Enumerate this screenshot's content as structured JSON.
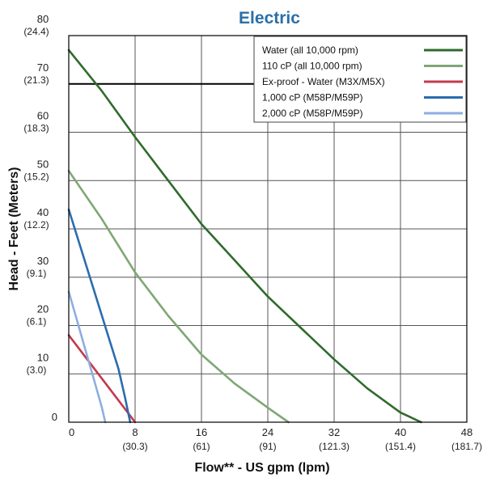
{
  "chart_data": {
    "type": "line",
    "title": "Electric",
    "xlabel": "Flow** - US gpm (lpm)",
    "ylabel": "Head - Feet (Meters)",
    "xlim": [
      0,
      48
    ],
    "ylim": [
      0,
      80
    ],
    "grid": true,
    "legend_position": "top-right",
    "x_ticks": [
      {
        "value": 0,
        "label": "0",
        "sub": ""
      },
      {
        "value": 8,
        "label": "8",
        "sub": "(30.3)"
      },
      {
        "value": 16,
        "label": "16",
        "sub": "(61)"
      },
      {
        "value": 24,
        "label": "24",
        "sub": "(91)"
      },
      {
        "value": 32,
        "label": "32",
        "sub": "(121.3)"
      },
      {
        "value": 40,
        "label": "40",
        "sub": "(151.4)"
      },
      {
        "value": 48,
        "label": "48",
        "sub": "(181.7)"
      }
    ],
    "y_ticks": [
      {
        "value": 0,
        "label": "0",
        "sub": ""
      },
      {
        "value": 10,
        "label": "10",
        "sub": "(3.0)"
      },
      {
        "value": 20,
        "label": "20",
        "sub": "(6.1)"
      },
      {
        "value": 30,
        "label": "30",
        "sub": "(9.1)"
      },
      {
        "value": 40,
        "label": "40",
        "sub": "(12.2)"
      },
      {
        "value": 50,
        "label": "50",
        "sub": "(15.2)"
      },
      {
        "value": 60,
        "label": "60",
        "sub": "(18.3)"
      },
      {
        "value": 70,
        "label": "70",
        "sub": "(21.3)"
      },
      {
        "value": 80,
        "label": "80",
        "sub": "(24.4)"
      }
    ],
    "reference_line": {
      "y": 70,
      "x_end": 36
    },
    "series": [
      {
        "name": "Water (all 10,000 rpm)",
        "color": "#2f6b2c",
        "points": [
          [
            0,
            77
          ],
          [
            4,
            68.5
          ],
          [
            8,
            59
          ],
          [
            12,
            50
          ],
          [
            16,
            41
          ],
          [
            20,
            33.5
          ],
          [
            24,
            26
          ],
          [
            28,
            19.5
          ],
          [
            32,
            13
          ],
          [
            36,
            7
          ],
          [
            40,
            2
          ],
          [
            42.5,
            0
          ]
        ]
      },
      {
        "name": "110 cP (all 10,000 rpm)",
        "color": "#7fa774",
        "points": [
          [
            0,
            52
          ],
          [
            4,
            42
          ],
          [
            8,
            31
          ],
          [
            12,
            22
          ],
          [
            16,
            14
          ],
          [
            20,
            8
          ],
          [
            24,
            3
          ],
          [
            26.5,
            0
          ]
        ]
      },
      {
        "name": "Ex-proof - Water (M3X/M5X)",
        "color": "#c33a4d",
        "points": [
          [
            0,
            18
          ],
          [
            2,
            13.5
          ],
          [
            4,
            9
          ],
          [
            6,
            4.5
          ],
          [
            8,
            0
          ]
        ]
      },
      {
        "name": "1,000 cP (M58P/M59P)",
        "color": "#2b6cb0",
        "points": [
          [
            0,
            44
          ],
          [
            2,
            33
          ],
          [
            4,
            22
          ],
          [
            6,
            11
          ],
          [
            6.8,
            5
          ],
          [
            7.4,
            0
          ]
        ]
      },
      {
        "name": "2,000 cP (M58P/M59P)",
        "color": "#8eaee0",
        "points": [
          [
            0,
            27
          ],
          [
            1,
            21
          ],
          [
            2,
            15
          ],
          [
            3,
            9
          ],
          [
            4,
            3
          ],
          [
            4.4,
            0
          ]
        ]
      }
    ]
  }
}
